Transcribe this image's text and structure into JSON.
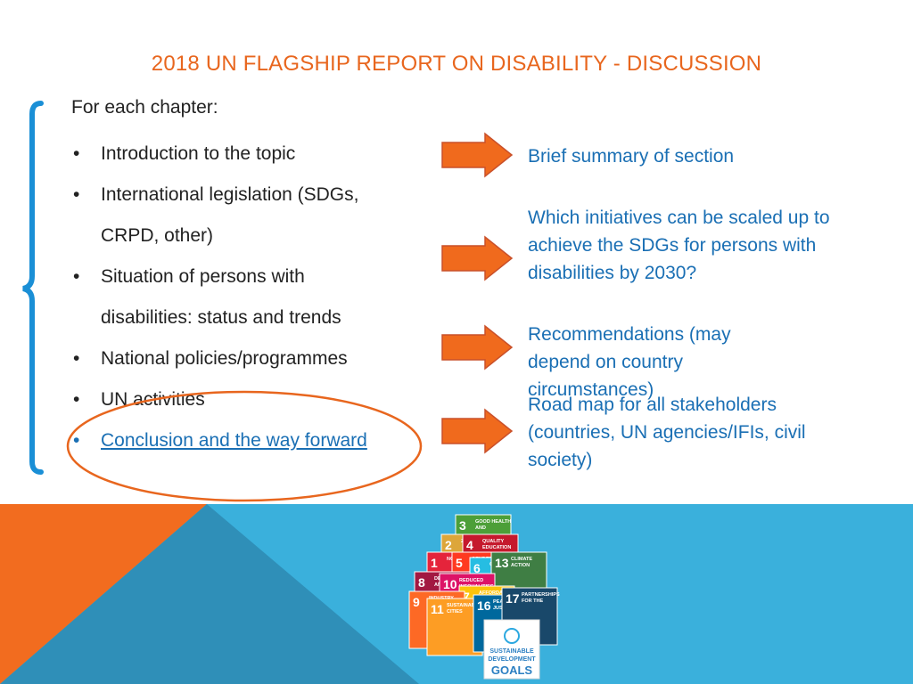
{
  "slide": {
    "title": "2018 UN FLAGSHIP REPORT ON DISABILITY - DISCUSSION",
    "intro": "For each chapter:",
    "bullets": [
      {
        "text": "Introduction to the topic"
      },
      {
        "text": "International legislation (SDGs,"
      },
      {
        "text": "CRPD, other)",
        "continuation": true
      },
      {
        "text": "Situation of persons with"
      },
      {
        "text": "disabilities: status and trends",
        "continuation": true
      },
      {
        "text": "National policies/programmes"
      },
      {
        "text": "UN activities"
      },
      {
        "text": "Conclusion and the way forward",
        "highlighted": true
      }
    ],
    "notes": [
      {
        "text": "Brief summary of section"
      },
      {
        "text": "Which initiatives can be scaled up to achieve the SDGs for persons with disabilities by 2030?"
      },
      {
        "text": "Recommendations (may depend on country circumstances)"
      },
      {
        "text": "Road map for all stakeholders (countries, UN agencies/IFIs, civil society)"
      }
    ],
    "bullet_glyph": "•"
  },
  "sdg_logo": {
    "tiles": [
      {
        "num": "3",
        "label": "GOOD HEALTH AND WELL-BEING",
        "color": "#4c9f38"
      },
      {
        "num": "2",
        "label": "ZERO HUNGER",
        "color": "#dda63a"
      },
      {
        "num": "4",
        "label": "QUALITY EDUCATION",
        "color": "#c5192d"
      },
      {
        "num": "1",
        "label": "NO POVERTY",
        "color": "#e5243b"
      },
      {
        "num": "5",
        "label": "GENDER EQUALITY",
        "color": "#ff3a21"
      },
      {
        "num": "6",
        "label": "CLEAN WATER",
        "color": "#26bde2"
      },
      {
        "num": "13",
        "label": "CLIMATE ACTION",
        "color": "#3f7e44"
      },
      {
        "num": "8",
        "label": "DECENT WORK AND ECONOMIC GROWTH",
        "color": "#a21942"
      },
      {
        "num": "10",
        "label": "REDUCED INEQUALITIES",
        "color": "#dd1367"
      },
      {
        "num": "7",
        "label": "AFFORDABLE AND CLEAN ENERGY",
        "color": "#fcc30b"
      },
      {
        "num": "9",
        "label": "INDUSTRY INNOVATION",
        "color": "#fd6925"
      },
      {
        "num": "11",
        "label": "SUSTAINABLE CITIES",
        "color": "#fd9d24"
      },
      {
        "num": "16",
        "label": "PEACE JUSTICE",
        "color": "#00689d"
      },
      {
        "num": "17",
        "label": "PARTNERSHIPS FOR THE GOALS",
        "color": "#19486a"
      }
    ],
    "badge_lines": [
      "SUSTAINABLE",
      "DEVELOPMENT",
      "GOALS"
    ]
  },
  "colors": {
    "title": "#e8661e",
    "accent_blue": "#1a6fb4",
    "arrow_fill": "#f06a1d",
    "arrow_stroke": "#c9502a",
    "band_blue": "#3ab0dc",
    "band_orange": "#f26c1f",
    "band_mid": "#2f8fb8",
    "brace": "#1a8fd6"
  }
}
